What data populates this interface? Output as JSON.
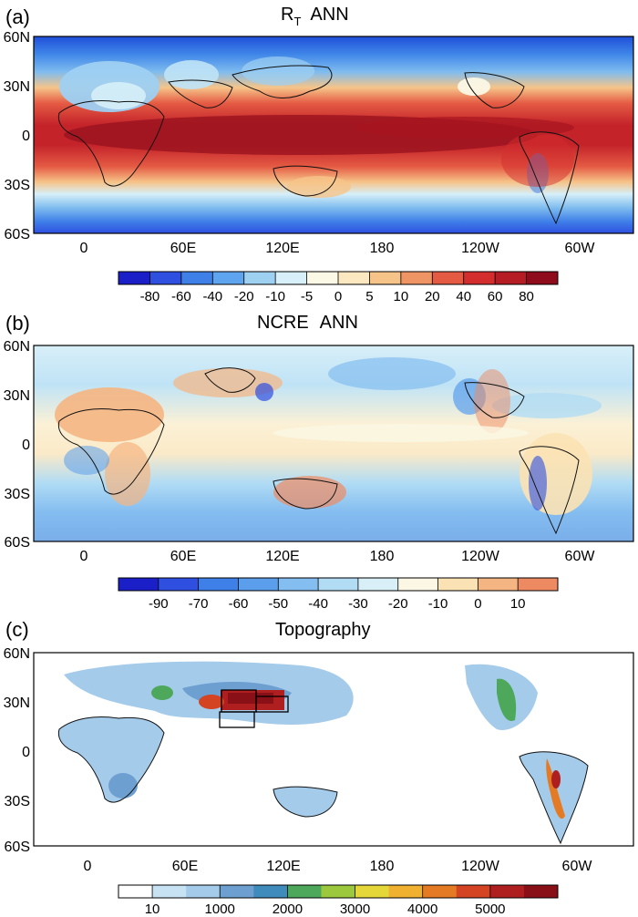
{
  "figure": {
    "panels": [
      {
        "id": "a",
        "label": "(a)",
        "title_main": "R",
        "title_sub": "T",
        "title_rest": "ANN",
        "colorbar_ticks": [
          "-80",
          "-60",
          "-40",
          "-20",
          "-10",
          "-5",
          "0",
          "5",
          "10",
          "20",
          "40",
          "60",
          "80"
        ],
        "colorbar_colors": [
          "#1b1fc8",
          "#2f4fe0",
          "#3f7fe8",
          "#5fa4ee",
          "#9ed0f2",
          "#d6eff8",
          "#fbf8e6",
          "#fbe7c0",
          "#f6c489",
          "#ef9464",
          "#e45a43",
          "#d42d2d",
          "#b51c24",
          "#8e0c1c"
        ]
      },
      {
        "id": "b",
        "label": "(b)",
        "title_main": "NCRE",
        "title_sub": "",
        "title_rest": "ANN",
        "colorbar_ticks": [
          "-90",
          "-70",
          "-60",
          "-50",
          "-40",
          "-30",
          "-20",
          "-10",
          "0",
          "10"
        ],
        "colorbar_colors": [
          "#1b1fc8",
          "#2f4fe0",
          "#3f7fe8",
          "#5a9eec",
          "#84bdf0",
          "#b1dcf4",
          "#d8eff8",
          "#fbf7e4",
          "#fbe2b4",
          "#f5b582",
          "#ee8a62"
        ]
      },
      {
        "id": "c",
        "label": "(c)",
        "title_main": "Topography",
        "title_sub": "",
        "title_rest": "",
        "colorbar_ticks": [
          "10",
          "1000",
          "2000",
          "3000",
          "4000",
          "5000"
        ],
        "colorbar_colors": [
          "#ffffff",
          "#c7e2f3",
          "#a4cbea",
          "#6d9fd1",
          "#3e8bbc",
          "#4ea85c",
          "#9cc83e",
          "#e5d63a",
          "#f0b030",
          "#e57a25",
          "#d44423",
          "#b01f20",
          "#8a1018"
        ]
      }
    ],
    "axis": {
      "lat_labels": [
        "60N",
        "30N",
        "0",
        "30S",
        "60S"
      ],
      "lon_labels": [
        "0",
        "60E",
        "120E",
        "180",
        "120W",
        "60W"
      ]
    }
  },
  "chart_data": [
    {
      "type": "heatmap",
      "title": "R_T ANN",
      "xlabel": "",
      "ylabel": "",
      "xlim": [
        -30,
        330
      ],
      "ylim": [
        -60,
        60
      ],
      "x_ticks": [
        "0",
        "60E",
        "120E",
        "180",
        "120W",
        "60W"
      ],
      "y_ticks": [
        "60N",
        "30N",
        "0",
        "30S",
        "60S"
      ],
      "color_levels": [
        -80,
        -60,
        -40,
        -20,
        -10,
        -5,
        0,
        5,
        10,
        20,
        40,
        60,
        80
      ],
      "colormap": "blue-white-red"
    },
    {
      "type": "heatmap",
      "title": "NCRE ANN",
      "xlabel": "",
      "ylabel": "",
      "xlim": [
        -30,
        330
      ],
      "ylim": [
        -60,
        60
      ],
      "x_ticks": [
        "0",
        "60E",
        "120E",
        "180",
        "120W",
        "60W"
      ],
      "y_ticks": [
        "60N",
        "30N",
        "0",
        "30S",
        "60S"
      ],
      "color_levels": [
        -90,
        -70,
        -60,
        -50,
        -40,
        -30,
        -20,
        -10,
        0,
        10
      ],
      "colormap": "blue-white-red"
    },
    {
      "type": "heatmap",
      "title": "Topography",
      "xlabel": "",
      "ylabel": "",
      "xlim": [
        -30,
        330
      ],
      "ylim": [
        -60,
        60
      ],
      "x_ticks": [
        "0",
        "60E",
        "120E",
        "180",
        "120W",
        "60W"
      ],
      "y_ticks": [
        "60N",
        "30N",
        "0",
        "30S",
        "60S"
      ],
      "color_levels": [
        10,
        1000,
        2000,
        3000,
        4000,
        5000
      ],
      "colormap": "white-blue-green-yellow-red"
    }
  ]
}
